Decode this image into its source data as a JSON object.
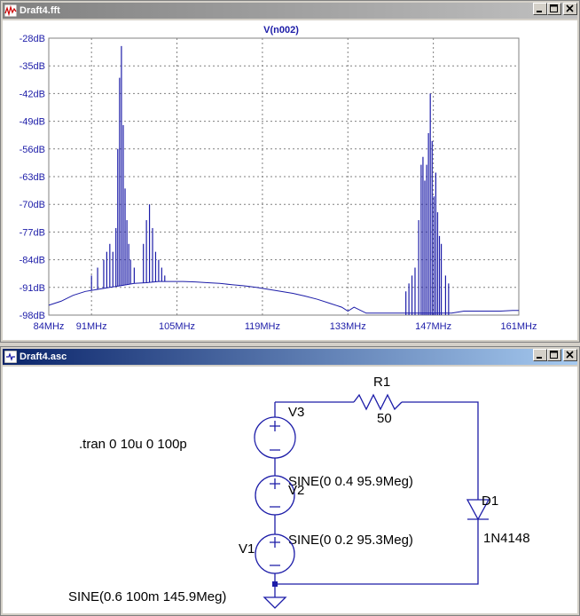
{
  "plot_window": {
    "title": "Draft4.fft",
    "trace_label": "V(n002)",
    "y_ticks": [
      "-28dB",
      "-35dB",
      "-42dB",
      "-49dB",
      "-56dB",
      "-63dB",
      "-70dB",
      "-77dB",
      "-84dB",
      "-91dB",
      "-98dB"
    ],
    "x_ticks": [
      "84MHz",
      "91MHz",
      "105MHz",
      "119MHz",
      "133MHz",
      "147MHz",
      "161MHz"
    ]
  },
  "schematic_window": {
    "title": "Draft4.asc",
    "directive": ".tran 0 10u 0 100p",
    "r1": {
      "name": "R1",
      "value": "50"
    },
    "v3": {
      "name": "V3",
      "value": "SINE(0 0.4 95.9Meg)"
    },
    "v2": {
      "name": "V2",
      "value": "SINE(0 0.2 95.3Meg)"
    },
    "v1": {
      "name": "V1",
      "value": "SINE(0.6 100m 145.9Meg)"
    },
    "d1": {
      "name": "D1",
      "value": "1N4148"
    }
  },
  "colors": {
    "trace": "#1c1ca8",
    "wire": "#1c1ca8",
    "grid": "#808080",
    "axis_text": "#1c1ca8"
  },
  "chart_data": {
    "type": "line",
    "title": "V(n002)",
    "xlabel": "",
    "ylabel": "",
    "xlim": [
      84,
      161
    ],
    "ylim": [
      -98,
      -28
    ],
    "x_unit": "MHz",
    "y_unit": "dB",
    "grid": true,
    "series": [
      {
        "name": "V(n002)",
        "floor_x": [
          84,
          86,
          88,
          90,
          92,
          94,
          96,
          98,
          100,
          102,
          104,
          106,
          108,
          110,
          112,
          114,
          116,
          118,
          120,
          122,
          124,
          126,
          128,
          130,
          132,
          133,
          134,
          136,
          138,
          140,
          142,
          144,
          146,
          148,
          150,
          152,
          154,
          156,
          158,
          160,
          161
        ],
        "floor_y": [
          -95.5,
          -94.5,
          -93,
          -92,
          -91.5,
          -91,
          -90.5,
          -90,
          -89.8,
          -89.5,
          -89.5,
          -89.5,
          -89.6,
          -89.8,
          -90,
          -90.3,
          -90.6,
          -91,
          -91.5,
          -92,
          -92.5,
          -93.2,
          -94,
          -95,
          -96,
          -97,
          -96,
          -97.5,
          -97.5,
          -97.5,
          -97.5,
          -97.5,
          -97.5,
          -97.5,
          -97.5,
          -97,
          -97,
          -97,
          -97,
          -96.8,
          -96.8
        ],
        "peaks_x": [
          94.5,
          95.0,
          95.3,
          95.6,
          95.9,
          96.2,
          96.5,
          96.8,
          97.1,
          97.4,
          98.0,
          99.5,
          100.0,
          100.5,
          101.0,
          101.5,
          102.0,
          102.5,
          103.0,
          91.0,
          92.0,
          93.0,
          93.5,
          94.0,
          144.0,
          144.6,
          145.0,
          145.3,
          145.6,
          145.9,
          146.2,
          146.5,
          146.8,
          147.1,
          147.4,
          147.7,
          148.0,
          148.3,
          149.0,
          149.5,
          142.5,
          143.0,
          143.5
        ],
        "peaks_y": [
          -82,
          -76,
          -56,
          -38,
          -30,
          -50,
          -66,
          -74,
          -80,
          -84,
          -86,
          -80,
          -74,
          -70,
          -76,
          -82,
          -84,
          -86,
          -88,
          -88,
          -86,
          -84,
          -82,
          -80,
          -86,
          -74,
          -60,
          -58,
          -64,
          -60,
          -52,
          -42,
          -54,
          -68,
          -62,
          -72,
          -78,
          -80,
          -88,
          -90,
          -92,
          -90,
          -88
        ]
      }
    ]
  }
}
